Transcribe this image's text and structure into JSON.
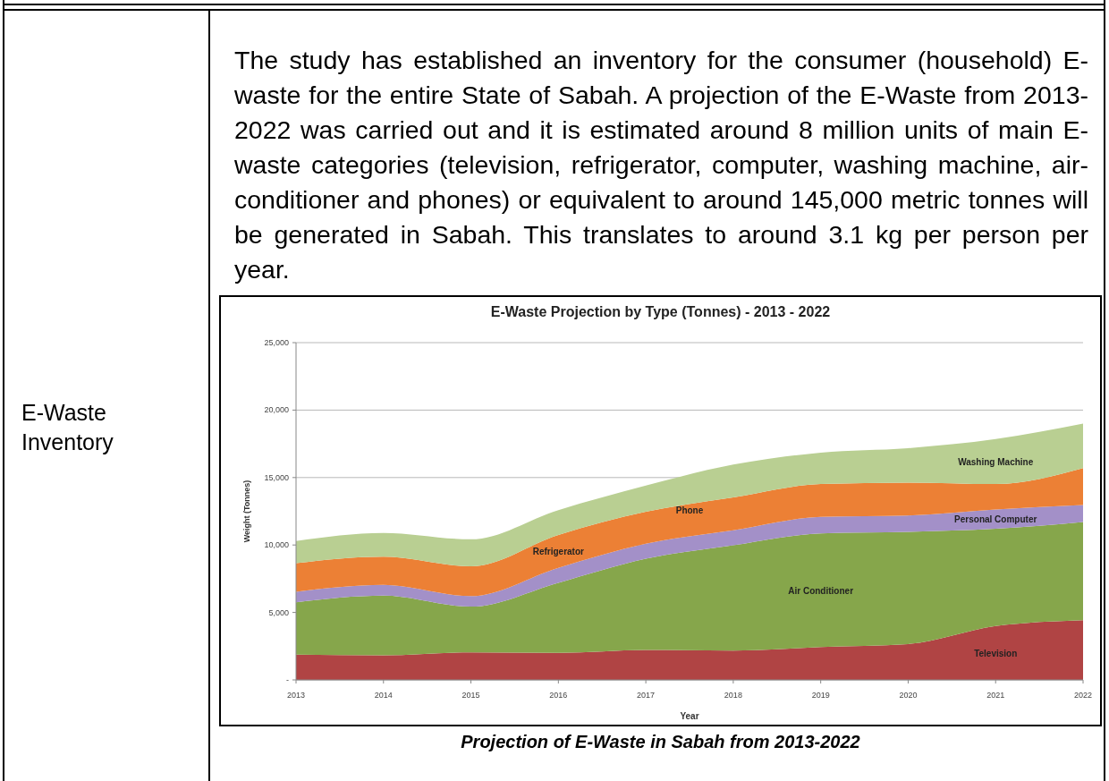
{
  "chart_data": {
    "type": "area",
    "stacked": true,
    "title": "E-Waste Projection by Type (Tonnes) - 2013 - 2022",
    "xlabel": "Year",
    "ylabel": "Weight (Tonnes)",
    "x": [
      2013,
      2014,
      2015,
      2016,
      2017,
      2018,
      2019,
      2020,
      2021,
      2022
    ],
    "series": [
      {
        "name": "Television",
        "color": "#b04444",
        "values": [
          1880,
          1820,
          2040,
          2000,
          2220,
          2170,
          2440,
          2660,
          3990,
          4430
        ]
      },
      {
        "name": "Air Conditioner",
        "color": "#86a64b",
        "values": [
          3880,
          4430,
          3390,
          5200,
          6760,
          7810,
          8420,
          8310,
          7210,
          7280
        ]
      },
      {
        "name": "Personal Computer",
        "color": "#a390c8",
        "values": [
          780,
          800,
          780,
          1110,
          1110,
          1110,
          1220,
          1220,
          1440,
          1260
        ]
      },
      {
        "name": "Refrigerator",
        "color": "#ec8035",
        "values": [
          2110,
          2080,
          2210,
          2440,
          2370,
          2430,
          2440,
          2440,
          1880,
          2730
        ]
      },
      {
        "name": "Washing Machine",
        "color": "#b9cf92",
        "values": [
          1650,
          1770,
          2000,
          1840,
          1950,
          2440,
          2330,
          2550,
          3330,
          3300
        ]
      }
    ],
    "xlim": [
      2013,
      2022
    ],
    "xticks": [
      2013,
      2014,
      2015,
      2016,
      2017,
      2018,
      2019,
      2020,
      2021,
      2022
    ],
    "ylim": [
      0,
      25000
    ],
    "yticks": [
      {
        "value": 0,
        "label": "-"
      },
      {
        "value": 5000,
        "label": "5,000"
      },
      {
        "value": 10000,
        "label": "10,000"
      },
      {
        "value": 15000,
        "label": "15,000"
      },
      {
        "value": 20000,
        "label": "20,000"
      },
      {
        "value": 25000,
        "label": "25,000"
      }
    ],
    "grid": "y",
    "legend": false,
    "annotations": [
      "E-Waste Inventory",
      "The study has established an inventory for the consumer (household) E-waste for the entire State of Sabah. A projection of the E-Waste from 2013-2022 was carried out and it is estimated around 8 million units of main E-waste categories (television, refrigerator, computer, washing machine, air-conditioner and phones) or equivalent to around 145,000 metric tonnes will be generated in Sabah. This translates to around 3.1 kg per person per year.",
      "Projection of E-Waste in Sabah from 2013-2022",
      "Phone"
    ]
  }
}
